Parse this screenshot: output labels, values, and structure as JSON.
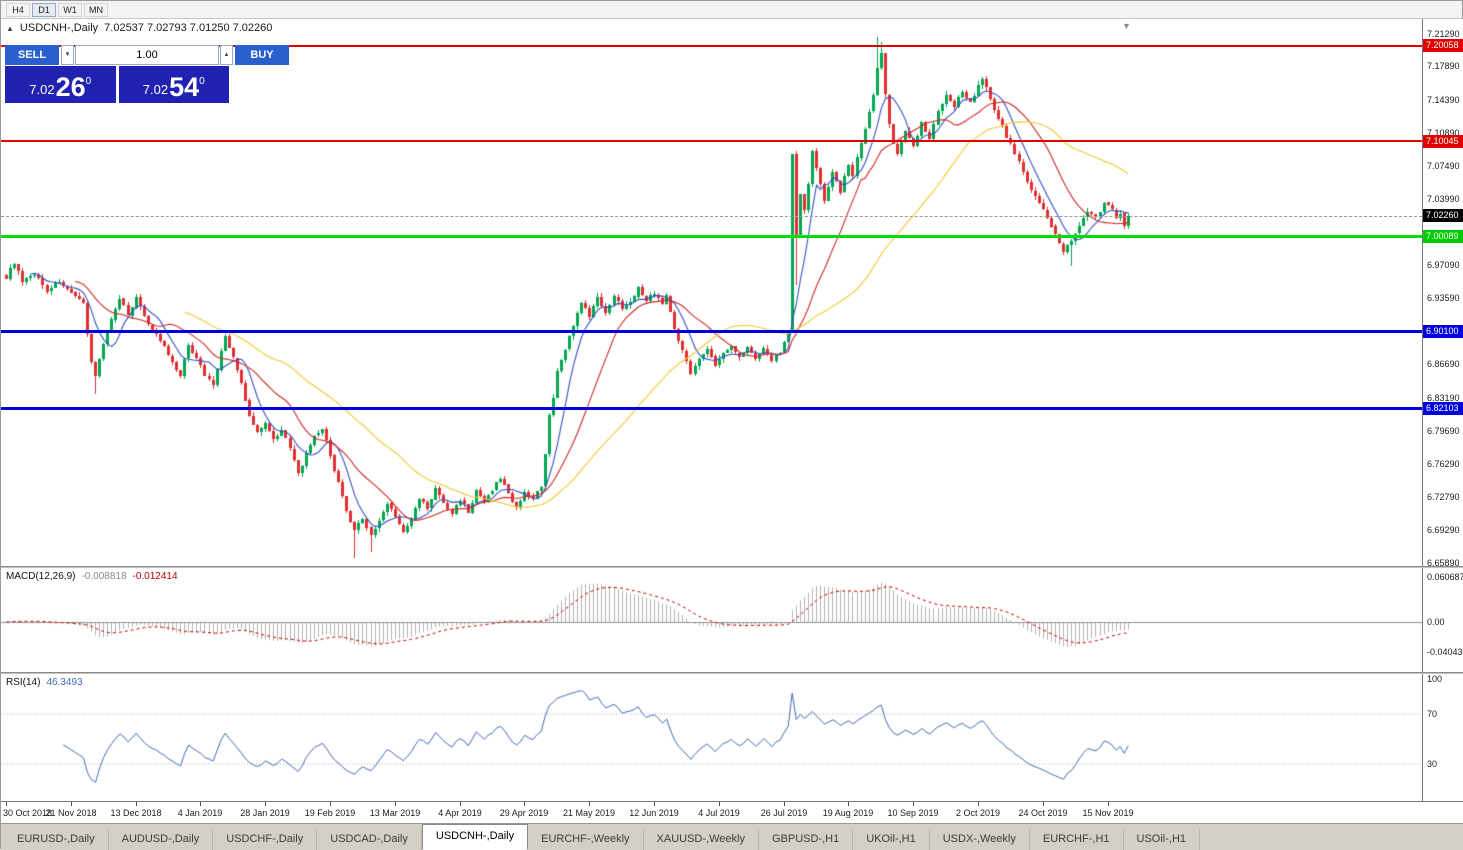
{
  "toolbar": {
    "timeframes": [
      {
        "label": "H4",
        "active": false
      },
      {
        "label": "D1",
        "active": true
      },
      {
        "label": "W1",
        "active": false
      },
      {
        "label": "MN",
        "active": false
      }
    ]
  },
  "chart": {
    "title_symbol": "USDCNH-,Daily",
    "title_ohlc": "7.02537 7.02793 7.01250 7.02260",
    "title_icon": "▲",
    "shift_marker": "▼",
    "trade_panel": {
      "sell_label": "SELL",
      "buy_label": "BUY",
      "volume": "1.00",
      "spin_down": "▾",
      "spin_up": "▴",
      "sell_base": "7.02",
      "sell_pips": "26",
      "sell_frac": "0",
      "buy_base": "7.02",
      "buy_pips": "54",
      "buy_frac": "0"
    },
    "colors": {
      "up": "#00a651",
      "down": "#e03030",
      "ma_fast": "#3452c8",
      "ma_mid": "#d02828",
      "ma_slow": "#f0c832",
      "line_red": "#e00000",
      "line_green": "#00dd00",
      "line_blue": "#0000dd",
      "current": "#9a9a9a"
    },
    "current_price": 7.0226,
    "hlines": [
      {
        "price": 7.20058,
        "color": "#e00000",
        "width": 2
      },
      {
        "price": 7.10045,
        "color": "#e00000",
        "width": 2
      },
      {
        "price": 7.00089,
        "color": "#00dd00",
        "width": 3
      },
      {
        "price": 6.901,
        "color": "#0000dd",
        "width": 3
      },
      {
        "price": 6.82103,
        "color": "#0000dd",
        "width": 3
      }
    ]
  },
  "price_scale": {
    "labels": [
      "7.21290",
      "7.17890",
      "7.14390",
      "7.10890",
      "7.07490",
      "7.03990",
      "6.97090",
      "6.93590",
      "6.86690",
      "6.83190",
      "6.79690",
      "6.76290",
      "6.72790",
      "6.69290",
      "6.65890"
    ],
    "markers": [
      {
        "price": 7.20058,
        "label": "7.20058",
        "bg": "#e00000",
        "fg": "#ffffff"
      },
      {
        "price": 7.10045,
        "label": "7.10045",
        "bg": "#e00000",
        "fg": "#ffffff"
      },
      {
        "price": 7.0226,
        "label": "7.02260",
        "bg": "#000000",
        "fg": "#ffffff"
      },
      {
        "price": 7.00089,
        "label": "7.00089",
        "bg": "#00cc00",
        "fg": "#ffffff"
      },
      {
        "price": 6.901,
        "label": "6.90100",
        "bg": "#0000dd",
        "fg": "#ffffff"
      },
      {
        "price": 6.82103,
        "label": "6.82103",
        "bg": "#0000dd",
        "fg": "#ffffff"
      }
    ]
  },
  "date_axis": {
    "labels": [
      "30 Oct 2018",
      "21 Nov 2018",
      "13 Dec 2018",
      "4 Jan 2019",
      "28 Jan 2019",
      "19 Feb 2019",
      "13 Mar 2019",
      "4 Apr 2019",
      "29 Apr 2019",
      "21 May 2019",
      "12 Jun 2019",
      "4 Jul 2019",
      "26 Jul 2019",
      "19 Aug 2019",
      "10 Sep 2019",
      "2 Oct 2019",
      "24 Oct 2019",
      "15 Nov 2019"
    ]
  },
  "chart_data": {
    "type": "candlestick",
    "symbol": "USDCNH",
    "period": "Daily",
    "ohlc_current": {
      "open": 7.02537,
      "high": 7.02793,
      "low": 7.0125,
      "close": 7.0226
    },
    "visible_range": {
      "first_date": "30 Oct 2018",
      "last_date": "15 Nov 2019",
      "price_min": 6.6589,
      "price_max": 7.2129
    },
    "num_candles": 278,
    "days_per_x_label": 16,
    "last_close": 7.0226,
    "horizontal_levels": [
      7.20058,
      7.10045,
      7.00089,
      6.901,
      6.82103
    ],
    "moving_averages": [
      {
        "period": 7,
        "color_key": "ma_fast"
      },
      {
        "period": 18,
        "color_key": "ma_mid"
      },
      {
        "period": 45,
        "color_key": "ma_slow"
      }
    ],
    "close_anchors": [
      [
        0,
        6.958
      ],
      [
        2,
        6.974
      ],
      [
        4,
        6.952
      ],
      [
        7,
        6.962
      ],
      [
        10,
        6.944
      ],
      [
        13,
        6.954
      ],
      [
        16,
        6.94
      ],
      [
        19,
        6.93
      ],
      [
        21,
        6.87
      ],
      [
        22,
        6.854
      ],
      [
        24,
        6.89
      ],
      [
        26,
        6.914
      ],
      [
        28,
        6.934
      ],
      [
        30,
        6.92
      ],
      [
        32,
        6.936
      ],
      [
        35,
        6.91
      ],
      [
        38,
        6.892
      ],
      [
        41,
        6.868
      ],
      [
        43,
        6.854
      ],
      [
        45,
        6.888
      ],
      [
        47,
        6.874
      ],
      [
        49,
        6.856
      ],
      [
        51,
        6.846
      ],
      [
        54,
        6.896
      ],
      [
        56,
        6.874
      ],
      [
        58,
        6.846
      ],
      [
        60,
        6.812
      ],
      [
        62,
        6.796
      ],
      [
        64,
        6.806
      ],
      [
        66,
        6.788
      ],
      [
        68,
        6.8
      ],
      [
        70,
        6.778
      ],
      [
        72,
        6.752
      ],
      [
        74,
        6.772
      ],
      [
        76,
        6.79
      ],
      [
        78,
        6.8
      ],
      [
        80,
        6.772
      ],
      [
        82,
        6.742
      ],
      [
        84,
        6.712
      ],
      [
        86,
        6.692
      ],
      [
        88,
        6.706
      ],
      [
        90,
        6.688
      ],
      [
        92,
        6.702
      ],
      [
        94,
        6.722
      ],
      [
        96,
        6.708
      ],
      [
        98,
        6.69
      ],
      [
        100,
        6.704
      ],
      [
        102,
        6.726
      ],
      [
        104,
        6.716
      ],
      [
        106,
        6.736
      ],
      [
        108,
        6.722
      ],
      [
        110,
        6.71
      ],
      [
        112,
        6.726
      ],
      [
        114,
        6.712
      ],
      [
        116,
        6.734
      ],
      [
        118,
        6.722
      ],
      [
        120,
        6.736
      ],
      [
        122,
        6.748
      ],
      [
        124,
        6.732
      ],
      [
        126,
        6.716
      ],
      [
        128,
        6.734
      ],
      [
        130,
        6.726
      ],
      [
        132,
        6.738
      ],
      [
        133,
        6.772
      ],
      [
        134,
        6.812
      ],
      [
        135,
        6.832
      ],
      [
        136,
        6.858
      ],
      [
        138,
        6.884
      ],
      [
        140,
        6.908
      ],
      [
        142,
        6.93
      ],
      [
        144,
        6.918
      ],
      [
        146,
        6.936
      ],
      [
        148,
        6.922
      ],
      [
        150,
        6.938
      ],
      [
        152,
        6.926
      ],
      [
        154,
        6.934
      ],
      [
        156,
        6.946
      ],
      [
        158,
        6.934
      ],
      [
        160,
        6.942
      ],
      [
        162,
        6.93
      ],
      [
        163,
        6.938
      ],
      [
        165,
        6.906
      ],
      [
        167,
        6.88
      ],
      [
        169,
        6.858
      ],
      [
        171,
        6.874
      ],
      [
        173,
        6.882
      ],
      [
        175,
        6.866
      ],
      [
        177,
        6.878
      ],
      [
        179,
        6.886
      ],
      [
        181,
        6.876
      ],
      [
        183,
        6.884
      ],
      [
        185,
        6.874
      ],
      [
        187,
        6.882
      ],
      [
        189,
        6.872
      ],
      [
        191,
        6.88
      ],
      [
        193,
        6.902
      ],
      [
        194,
        7.088
      ],
      [
        195,
        7.002
      ],
      [
        196,
        7.044
      ],
      [
        197,
        7.028
      ],
      [
        198,
        7.056
      ],
      [
        199,
        7.088
      ],
      [
        200,
        7.072
      ],
      [
        201,
        7.056
      ],
      [
        202,
        7.04
      ],
      [
        204,
        7.068
      ],
      [
        206,
        7.048
      ],
      [
        208,
        7.076
      ],
      [
        209,
        7.064
      ],
      [
        210,
        7.082
      ],
      [
        212,
        7.112
      ],
      [
        214,
        7.148
      ],
      [
        215,
        7.178
      ],
      [
        216,
        7.192
      ],
      [
        217,
        7.15
      ],
      [
        218,
        7.12
      ],
      [
        219,
        7.098
      ],
      [
        220,
        7.086
      ],
      [
        222,
        7.112
      ],
      [
        224,
        7.096
      ],
      [
        226,
        7.12
      ],
      [
        228,
        7.104
      ],
      [
        230,
        7.132
      ],
      [
        232,
        7.15
      ],
      [
        234,
        7.136
      ],
      [
        236,
        7.154
      ],
      [
        238,
        7.14
      ],
      [
        240,
        7.16
      ],
      [
        241,
        7.168
      ],
      [
        243,
        7.144
      ],
      [
        245,
        7.124
      ],
      [
        247,
        7.106
      ],
      [
        249,
        7.088
      ],
      [
        251,
        7.068
      ],
      [
        253,
        7.05
      ],
      [
        255,
        7.036
      ],
      [
        257,
        7.02
      ],
      [
        259,
        7.002
      ],
      [
        261,
        6.984
      ],
      [
        263,
        6.996
      ],
      [
        265,
        7.012
      ],
      [
        267,
        7.026
      ],
      [
        269,
        7.02
      ],
      [
        271,
        7.036
      ],
      [
        273,
        7.03
      ],
      [
        274,
        7.018
      ],
      [
        275,
        7.026
      ],
      [
        276,
        7.012
      ],
      [
        277,
        7.0226
      ]
    ],
    "wick_overrides": [
      {
        "d": 22,
        "low": 6.836
      },
      {
        "d": 86,
        "low": 6.664
      },
      {
        "d": 90,
        "low": 6.67
      },
      {
        "d": 194,
        "low": 6.93
      },
      {
        "d": 195,
        "low": 6.95
      },
      {
        "d": 215,
        "high": 7.21
      },
      {
        "d": 216,
        "high": 7.204
      },
      {
        "d": 263,
        "low": 6.97
      }
    ]
  },
  "macd": {
    "name": "MACD(12,26,9)",
    "value_main": "-0.008818",
    "value_signal": "-0.012414",
    "axis_max": "0.060687",
    "axis_zero": "0.00",
    "axis_min": "-0.040432",
    "params": {
      "fast": 12,
      "slow": 26,
      "signal": 9
    },
    "hist_color": "#b2b2b2",
    "signal_color": "#c00000"
  },
  "rsi": {
    "name": "RSI(14)",
    "value": "46.3493",
    "period": 14,
    "axis": [
      "100",
      "70",
      "30"
    ],
    "levels": [
      70,
      30
    ],
    "line_color": "#3f6ab5"
  },
  "tabs": [
    {
      "label": "EURUSD-,Daily",
      "active": false
    },
    {
      "label": "AUDUSD-,Daily",
      "active": false
    },
    {
      "label": "USDCHF-,Daily",
      "active": false
    },
    {
      "label": "USDCAD-,Daily",
      "active": false
    },
    {
      "label": "USDCNH-,Daily",
      "active": true
    },
    {
      "label": "EURCHF-,Weekly",
      "active": false
    },
    {
      "label": "XAUUSD-,Weekly",
      "active": false
    },
    {
      "label": "GBPUSD-,H1",
      "active": false
    },
    {
      "label": "UKOil-,H1",
      "active": false
    },
    {
      "label": "USDX-,Weekly",
      "active": false
    },
    {
      "label": "EURCHF-,H1",
      "active": false
    },
    {
      "label": "USOil-,H1",
      "active": false
    }
  ]
}
